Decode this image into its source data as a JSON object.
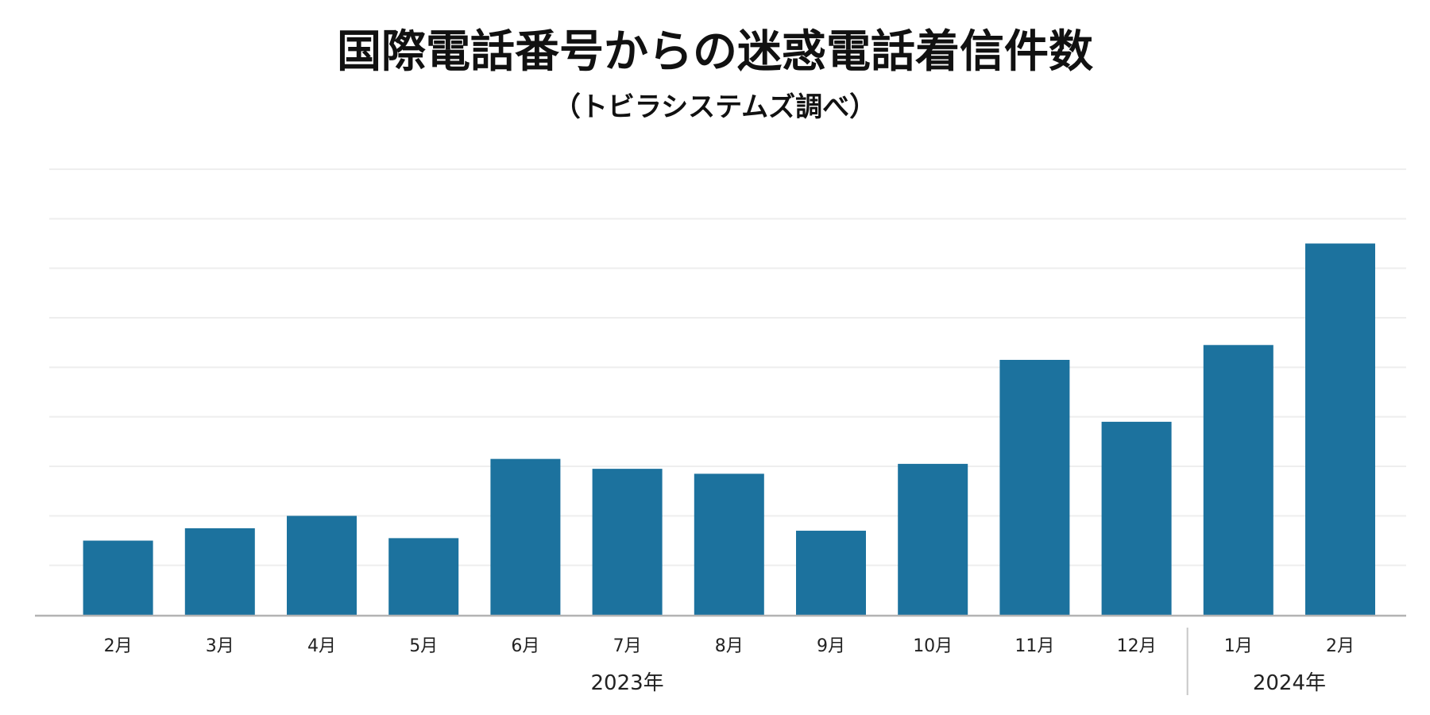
{
  "chart_data": {
    "type": "bar",
    "title": "国際電話番号からの迷惑電話着信件数",
    "subtitle": "（トビラシステムズ調べ）",
    "categories": [
      "2月",
      "3月",
      "4月",
      "5月",
      "6月",
      "7月",
      "8月",
      "9月",
      "10月",
      "11月",
      "12月",
      "1月",
      "2月"
    ],
    "values": [
      15,
      17.5,
      20,
      15.5,
      31.5,
      29.5,
      28.5,
      17,
      30.5,
      51.5,
      39,
      54.5,
      75
    ],
    "ylim": [
      0,
      90
    ],
    "grid_lines": 9,
    "grid": true,
    "y_tick_labels": false,
    "legend": false,
    "xlabel": "",
    "ylabel": "",
    "groups": [
      {
        "label": "2023年",
        "start": 0,
        "end": 10
      },
      {
        "label": "2024年",
        "start": 11,
        "end": 12
      }
    ],
    "colors": {
      "bar": "#1c729e",
      "grid": "#eeeeee",
      "axis": "#b3b3b3",
      "separator": "#c8c8c8"
    }
  }
}
